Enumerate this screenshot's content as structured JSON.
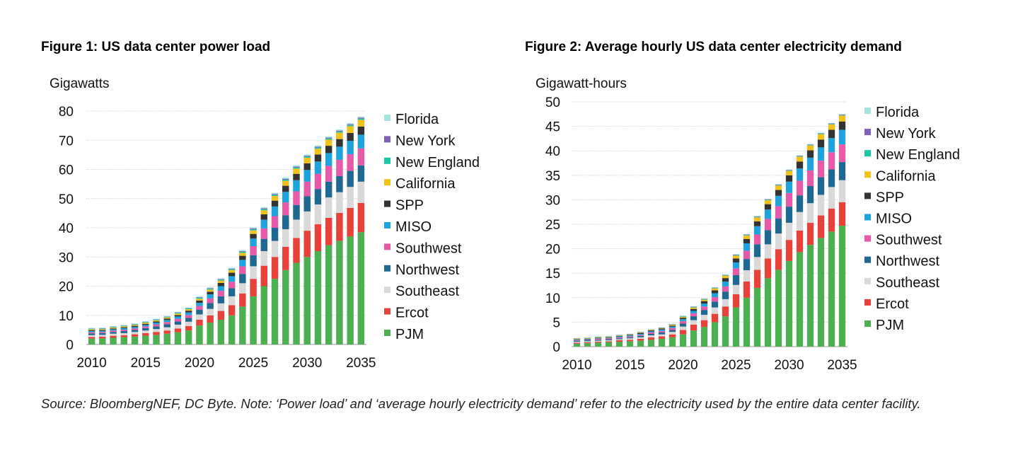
{
  "titles": {
    "fig1": "Figure 1:  US data center power load",
    "fig2": "Figure 2:  Average hourly US data center electricity demand"
  },
  "source_note": "Source: BloombergNEF, DC Byte. Note: ‘Power load’ and ‘average hourly electricity demand’ refer to the electricity used by the entire data center facility.",
  "colors": {
    "PJM": "#4caf50",
    "Ercot": "#e8413a",
    "Southeast": "#d9d9d9",
    "Northwest": "#1f6891",
    "Southwest": "#e75aa8",
    "MISO": "#1ea3dc",
    "SPP": "#333333",
    "California": "#f2c21a",
    "New England": "#19c7a6",
    "New York": "#8060b8",
    "Florida": "#a7e4dd"
  },
  "chart_data": [
    {
      "type": "bar",
      "stacked": true,
      "ylabel": "Gigawatts",
      "ylim": [
        0,
        80
      ],
      "yticks": [
        0,
        10,
        20,
        30,
        40,
        50,
        60,
        70,
        80
      ],
      "xticks": [
        "2010",
        "2015",
        "2020",
        "2025",
        "2030",
        "2035"
      ],
      "categories": [
        "2010",
        "2011",
        "2012",
        "2013",
        "2014",
        "2015",
        "2016",
        "2017",
        "2018",
        "2019",
        "2020",
        "2021",
        "2022",
        "2023",
        "2024",
        "2025",
        "2026",
        "2027",
        "2028",
        "2029",
        "2030",
        "2031",
        "2032",
        "2033",
        "2034",
        "2035"
      ],
      "legend": [
        "Florida",
        "New York",
        "New England",
        "California",
        "SPP",
        "MISO",
        "Southwest",
        "Northwest",
        "Southeast",
        "Ercot",
        "PJM"
      ],
      "legend_position": "right",
      "series": [
        {
          "name": "PJM",
          "values": [
            2.0,
            2.1,
            2.3,
            2.5,
            2.7,
            3.0,
            3.3,
            3.7,
            4.2,
            4.8,
            6.5,
            7.5,
            8.5,
            10.0,
            13.0,
            16.5,
            20.0,
            22.5,
            25.5,
            28.0,
            30.0,
            32.0,
            34.0,
            35.5,
            37.0,
            38.5
          ]
        },
        {
          "name": "Ercot",
          "values": [
            0.6,
            0.6,
            0.7,
            0.7,
            0.8,
            0.9,
            1.0,
            1.1,
            1.3,
            1.5,
            2.0,
            2.5,
            3.0,
            3.5,
            4.5,
            6.0,
            7.0,
            7.5,
            8.0,
            8.5,
            9.0,
            9.2,
            9.4,
            9.6,
            9.8,
            10.0
          ]
        },
        {
          "name": "Southeast",
          "values": [
            0.6,
            0.6,
            0.7,
            0.7,
            0.8,
            0.9,
            1.0,
            1.1,
            1.3,
            1.5,
            1.8,
            2.2,
            2.6,
            3.0,
            3.5,
            4.3,
            5.0,
            5.5,
            6.0,
            6.3,
            6.6,
            6.8,
            7.0,
            7.1,
            7.2,
            7.3
          ]
        },
        {
          "name": "Northwest",
          "values": [
            0.6,
            0.6,
            0.6,
            0.7,
            0.7,
            0.8,
            0.9,
            1.0,
            1.1,
            1.3,
            1.6,
            2.0,
            2.4,
            2.8,
            3.2,
            3.8,
            4.2,
            4.5,
            4.8,
            5.0,
            5.2,
            5.3,
            5.4,
            5.5,
            5.5,
            5.6
          ]
        },
        {
          "name": "Southwest",
          "values": [
            0.4,
            0.4,
            0.5,
            0.5,
            0.5,
            0.6,
            0.7,
            0.8,
            0.9,
            1.0,
            1.3,
            1.6,
            1.9,
            2.2,
            2.6,
            3.1,
            3.6,
            4.0,
            4.4,
            4.7,
            5.0,
            5.2,
            5.4,
            5.6,
            5.7,
            5.8
          ]
        },
        {
          "name": "MISO",
          "values": [
            0.4,
            0.4,
            0.4,
            0.5,
            0.5,
            0.5,
            0.6,
            0.7,
            0.8,
            0.9,
            1.1,
            1.4,
            1.6,
            1.9,
            2.2,
            2.6,
            3.0,
            3.3,
            3.6,
            3.8,
            4.0,
            4.2,
            4.4,
            4.5,
            4.6,
            4.7
          ]
        },
        {
          "name": "SPP",
          "values": [
            0.3,
            0.3,
            0.3,
            0.3,
            0.4,
            0.4,
            0.4,
            0.5,
            0.5,
            0.6,
            0.8,
            0.9,
            1.1,
            1.2,
            1.4,
            1.6,
            1.8,
            2.0,
            2.1,
            2.2,
            2.3,
            2.4,
            2.5,
            2.6,
            2.7,
            2.8
          ]
        },
        {
          "name": "California",
          "values": [
            0.3,
            0.3,
            0.3,
            0.3,
            0.3,
            0.4,
            0.4,
            0.4,
            0.5,
            0.5,
            0.6,
            0.7,
            0.8,
            0.9,
            1.0,
            1.2,
            1.4,
            1.6,
            1.7,
            1.8,
            1.9,
            2.0,
            2.1,
            2.2,
            2.3,
            2.3
          ]
        },
        {
          "name": "New England",
          "values": [
            0.2,
            0.2,
            0.2,
            0.2,
            0.2,
            0.2,
            0.2,
            0.2,
            0.3,
            0.3,
            0.3,
            0.3,
            0.3,
            0.3,
            0.4,
            0.4,
            0.4,
            0.4,
            0.4,
            0.4,
            0.4,
            0.4,
            0.4,
            0.4,
            0.4,
            0.4
          ]
        },
        {
          "name": "New York",
          "values": [
            0.1,
            0.1,
            0.1,
            0.1,
            0.1,
            0.1,
            0.1,
            0.1,
            0.1,
            0.1,
            0.2,
            0.2,
            0.2,
            0.2,
            0.2,
            0.3,
            0.3,
            0.3,
            0.3,
            0.3,
            0.3,
            0.3,
            0.3,
            0.3,
            0.3,
            0.3
          ]
        },
        {
          "name": "Florida",
          "values": [
            0.2,
            0.2,
            0.2,
            0.2,
            0.2,
            0.2,
            0.2,
            0.2,
            0.2,
            0.2,
            0.3,
            0.3,
            0.3,
            0.3,
            0.3,
            0.4,
            0.4,
            0.4,
            0.4,
            0.4,
            0.4,
            0.4,
            0.4,
            0.4,
            0.4,
            0.4
          ]
        }
      ]
    },
    {
      "type": "bar",
      "stacked": true,
      "ylabel": "Gigawatt-hours",
      "ylim": [
        0,
        50
      ],
      "yticks": [
        0,
        5,
        10,
        15,
        20,
        25,
        30,
        35,
        40,
        45,
        50
      ],
      "xticks": [
        "2010",
        "2015",
        "2020",
        "2025",
        "2030",
        "2035"
      ],
      "categories": [
        "2010",
        "2011",
        "2012",
        "2013",
        "2014",
        "2015",
        "2016",
        "2017",
        "2018",
        "2019",
        "2020",
        "2021",
        "2022",
        "2023",
        "2024",
        "2025",
        "2026",
        "2027",
        "2028",
        "2029",
        "2030",
        "2031",
        "2032",
        "2033",
        "2034",
        "2035"
      ],
      "legend": [
        "Florida",
        "New York",
        "New England",
        "California",
        "SPP",
        "MISO",
        "Southwest",
        "Northwest",
        "Southeast",
        "Ercot",
        "PJM"
      ],
      "legend_position": "right",
      "series": [
        {
          "name": "PJM",
          "values": [
            0.6,
            0.7,
            0.8,
            0.9,
            1.0,
            1.1,
            1.2,
            1.4,
            1.6,
            1.9,
            2.5,
            3.3,
            4.0,
            5.0,
            6.2,
            8.0,
            10.0,
            12.0,
            14.0,
            15.7,
            17.5,
            19.3,
            20.8,
            22.2,
            23.5,
            24.7
          ]
        },
        {
          "name": "Ercot",
          "values": [
            0.2,
            0.2,
            0.2,
            0.2,
            0.3,
            0.3,
            0.4,
            0.5,
            0.5,
            0.6,
            0.9,
            1.2,
            1.4,
            1.7,
            2.0,
            2.7,
            3.3,
            3.7,
            4.0,
            4.2,
            4.3,
            4.4,
            4.5,
            4.6,
            4.7,
            4.8
          ]
        },
        {
          "name": "Southeast",
          "values": [
            0.2,
            0.2,
            0.2,
            0.2,
            0.2,
            0.3,
            0.3,
            0.4,
            0.4,
            0.5,
            0.7,
            0.9,
            1.1,
            1.3,
            1.5,
            1.9,
            2.3,
            2.6,
            2.9,
            3.2,
            3.5,
            3.8,
            4.0,
            4.2,
            4.4,
            4.5
          ]
        },
        {
          "name": "Northwest",
          "values": [
            0.2,
            0.2,
            0.2,
            0.2,
            0.2,
            0.2,
            0.3,
            0.3,
            0.4,
            0.4,
            0.6,
            0.8,
            1.0,
            1.2,
            1.5,
            2.0,
            2.3,
            2.6,
            2.9,
            3.1,
            3.3,
            3.4,
            3.5,
            3.6,
            3.6,
            3.7
          ]
        },
        {
          "name": "Southwest",
          "values": [
            0.1,
            0.1,
            0.2,
            0.2,
            0.2,
            0.2,
            0.2,
            0.3,
            0.3,
            0.4,
            0.5,
            0.6,
            0.7,
            0.9,
            1.1,
            1.4,
            1.7,
            2.0,
            2.3,
            2.5,
            2.8,
            3.0,
            3.2,
            3.4,
            3.5,
            3.6
          ]
        },
        {
          "name": "MISO",
          "values": [
            0.1,
            0.1,
            0.1,
            0.1,
            0.2,
            0.2,
            0.2,
            0.2,
            0.3,
            0.3,
            0.4,
            0.5,
            0.6,
            0.8,
            1.0,
            1.2,
            1.5,
            1.7,
            1.9,
            2.1,
            2.3,
            2.5,
            2.6,
            2.7,
            2.9,
            3.0
          ]
        },
        {
          "name": "SPP",
          "values": [
            0.1,
            0.1,
            0.1,
            0.1,
            0.1,
            0.1,
            0.2,
            0.2,
            0.2,
            0.2,
            0.3,
            0.4,
            0.5,
            0.6,
            0.7,
            0.8,
            0.9,
            1.0,
            1.1,
            1.2,
            1.3,
            1.4,
            1.5,
            1.6,
            1.7,
            1.7
          ]
        },
        {
          "name": "California",
          "values": [
            0.1,
            0.1,
            0.1,
            0.1,
            0.1,
            0.1,
            0.1,
            0.1,
            0.1,
            0.2,
            0.2,
            0.3,
            0.3,
            0.4,
            0.5,
            0.6,
            0.7,
            0.8,
            0.8,
            0.9,
            0.9,
            1.0,
            1.0,
            1.1,
            1.1,
            1.2
          ]
        },
        {
          "name": "New England",
          "values": [
            0.05,
            0.05,
            0.05,
            0.05,
            0.05,
            0.05,
            0.05,
            0.05,
            0.05,
            0.05,
            0.1,
            0.1,
            0.1,
            0.1,
            0.1,
            0.1,
            0.1,
            0.1,
            0.1,
            0.1,
            0.1,
            0.1,
            0.1,
            0.1,
            0.1,
            0.1
          ]
        },
        {
          "name": "New York",
          "values": [
            0.05,
            0.05,
            0.05,
            0.05,
            0.05,
            0.05,
            0.05,
            0.05,
            0.05,
            0.05,
            0.05,
            0.05,
            0.05,
            0.05,
            0.05,
            0.1,
            0.1,
            0.1,
            0.1,
            0.1,
            0.1,
            0.1,
            0.1,
            0.1,
            0.1,
            0.1
          ]
        },
        {
          "name": "Florida",
          "values": [
            0.05,
            0.05,
            0.05,
            0.05,
            0.05,
            0.05,
            0.05,
            0.05,
            0.05,
            0.05,
            0.1,
            0.1,
            0.1,
            0.1,
            0.1,
            0.1,
            0.1,
            0.1,
            0.1,
            0.1,
            0.1,
            0.1,
            0.1,
            0.1,
            0.1,
            0.1
          ]
        }
      ]
    }
  ]
}
